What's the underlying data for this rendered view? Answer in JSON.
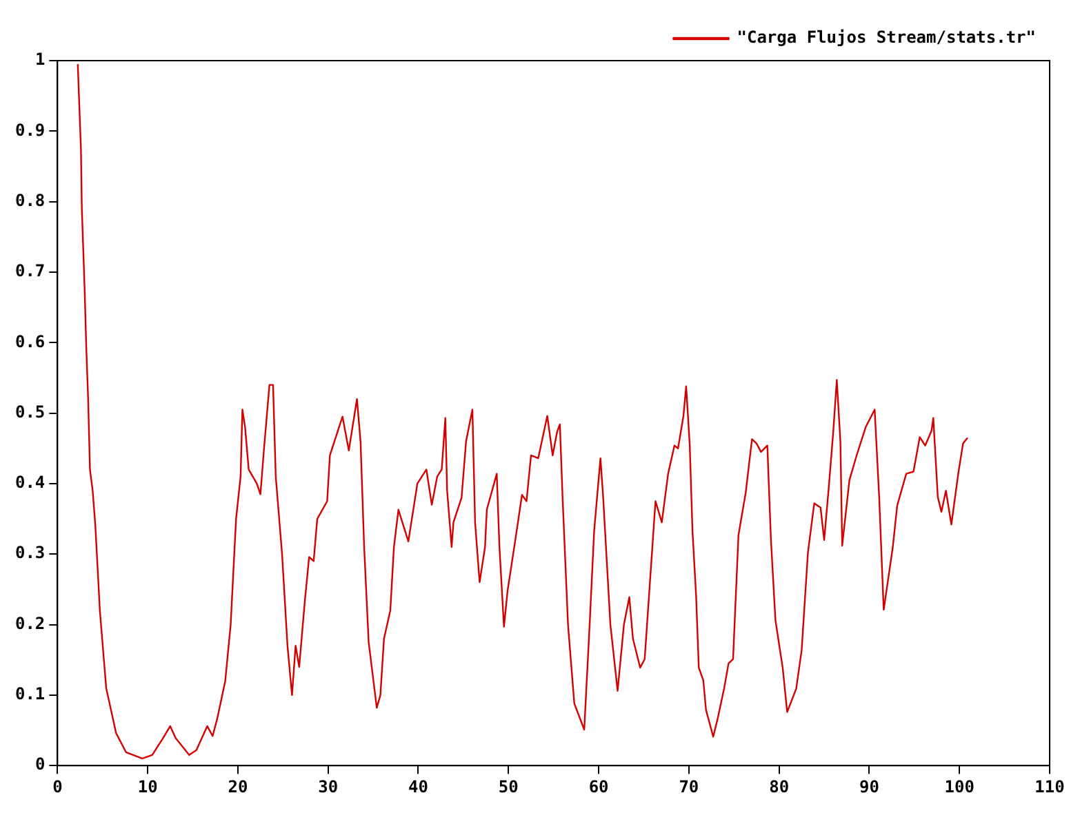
{
  "chart_data": {
    "type": "line",
    "xlim": [
      0,
      110
    ],
    "xticks": [
      0,
      10,
      20,
      30,
      40,
      50,
      60,
      70,
      80,
      90,
      100,
      110
    ],
    "ylim": [
      0,
      1
    ],
    "yticks": [
      0,
      0.1,
      0.2,
      0.3,
      0.4,
      0.5,
      0.6,
      0.7,
      0.8,
      0.9,
      1
    ],
    "grid": false,
    "legend": "top right",
    "marker": "none",
    "line_style": "solid",
    "series": [
      {
        "name": "\"Carga Flujos Stream/stats.tr\"",
        "color": "#d40000",
        "x": [
          2.25,
          2.6,
          2.7,
          3.0,
          3.2,
          3.4,
          3.6,
          3.9,
          4.2,
          4.7,
          5.4,
          6.5,
          7.6,
          9.4,
          10.5,
          11.7,
          12.5,
          13.1,
          14.6,
          15.4,
          16.6,
          17.2,
          17.7,
          18.6,
          19.2,
          19.8,
          20.3,
          20.5,
          20.8,
          21.2,
          22.1,
          22.5,
          22.9,
          23.5,
          23.9,
          24.2,
          24.9,
          25.5,
          26.0,
          26.4,
          26.8,
          27.4,
          27.9,
          28.4,
          28.8,
          29.9,
          30.2,
          31.6,
          32.3,
          33.2,
          33.6,
          34.0,
          34.5,
          35.4,
          35.8,
          36.2,
          36.9,
          37.3,
          37.8,
          38.9,
          39.9,
          40.4,
          40.9,
          41.5,
          42.1,
          42.6,
          43.0,
          43.2,
          43.7,
          43.9,
          44.8,
          45.3,
          46.0,
          46.3,
          46.8,
          47.4,
          47.6,
          48.7,
          49.0,
          49.5,
          49.9,
          50.7,
          51.5,
          52.0,
          52.5,
          53.3,
          54.3,
          54.9,
          55.4,
          55.7,
          56.0,
          56.6,
          57.3,
          58.4,
          59.0,
          59.5,
          60.2,
          60.5,
          61.3,
          62.1,
          62.8,
          63.4,
          63.8,
          64.6,
          65.1,
          66.3,
          67.0,
          67.7,
          68.4,
          68.8,
          69.4,
          69.7,
          70.1,
          70.4,
          70.8,
          71.1,
          71.6,
          71.9,
          72.7,
          73.2,
          73.9,
          74.4,
          74.9,
          75.5,
          76.3,
          77.0,
          77.5,
          78.0,
          78.7,
          79.1,
          79.6,
          80.4,
          80.9,
          81.9,
          82.5,
          83.2,
          83.9,
          84.6,
          85.0,
          85.5,
          86.0,
          86.4,
          86.8,
          87.0,
          87.8,
          88.6,
          89.6,
          90.6,
          91.1,
          91.6,
          92.6,
          93.1,
          94.1,
          94.9,
          95.6,
          96.2,
          96.9,
          97.1,
          97.6,
          98.0,
          98.5,
          99.1,
          99.9,
          100.4,
          100.9
        ],
        "values": [
          0.995,
          0.875,
          0.79,
          0.68,
          0.59,
          0.52,
          0.42,
          0.39,
          0.34,
          0.22,
          0.11,
          0.046,
          0.019,
          0.01,
          0.015,
          0.039,
          0.056,
          0.039,
          0.015,
          0.022,
          0.056,
          0.042,
          0.066,
          0.12,
          0.2,
          0.35,
          0.41,
          0.505,
          0.48,
          0.42,
          0.4,
          0.385,
          0.45,
          0.54,
          0.54,
          0.41,
          0.3,
          0.17,
          0.1,
          0.17,
          0.14,
          0.23,
          0.296,
          0.29,
          0.35,
          0.375,
          0.44,
          0.495,
          0.447,
          0.52,
          0.46,
          0.31,
          0.175,
          0.082,
          0.1,
          0.18,
          0.22,
          0.31,
          0.363,
          0.318,
          0.4,
          0.41,
          0.42,
          0.37,
          0.41,
          0.42,
          0.493,
          0.39,
          0.31,
          0.345,
          0.38,
          0.46,
          0.505,
          0.345,
          0.26,
          0.31,
          0.363,
          0.414,
          0.31,
          0.197,
          0.248,
          0.315,
          0.384,
          0.375,
          0.44,
          0.436,
          0.496,
          0.44,
          0.474,
          0.484,
          0.38,
          0.2,
          0.088,
          0.051,
          0.2,
          0.333,
          0.436,
          0.38,
          0.2,
          0.106,
          0.2,
          0.239,
          0.18,
          0.139,
          0.151,
          0.375,
          0.345,
          0.414,
          0.454,
          0.45,
          0.496,
          0.538,
          0.454,
          0.333,
          0.242,
          0.139,
          0.121,
          0.079,
          0.041,
          0.067,
          0.109,
          0.145,
          0.151,
          0.327,
          0.387,
          0.463,
          0.457,
          0.445,
          0.454,
          0.32,
          0.206,
          0.139,
          0.076,
          0.109,
          0.163,
          0.302,
          0.372,
          0.366,
          0.32,
          0.393,
          0.472,
          0.547,
          0.46,
          0.312,
          0.405,
          0.44,
          0.48,
          0.505,
          0.381,
          0.221,
          0.309,
          0.369,
          0.414,
          0.417,
          0.466,
          0.454,
          0.475,
          0.493,
          0.381,
          0.36,
          0.39,
          0.342,
          0.417,
          0.457,
          0.465
        ]
      }
    ]
  }
}
